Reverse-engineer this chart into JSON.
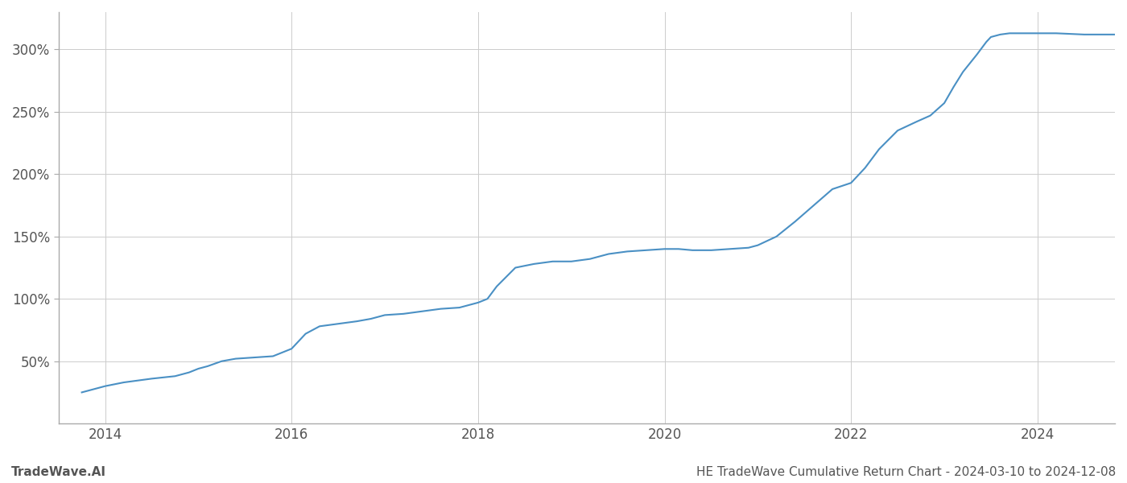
{
  "title": "HE TradeWave Cumulative Return Chart - 2024-03-10 to 2024-12-08",
  "watermark": "TradeWave.AI",
  "line_color": "#4a90c4",
  "line_width": 1.5,
  "background_color": "#ffffff",
  "grid_color": "#cccccc",
  "x_years": [
    2014,
    2016,
    2018,
    2020,
    2022,
    2024
  ],
  "y_ticks": [
    50,
    100,
    150,
    200,
    250,
    300
  ],
  "xlim": [
    2013.5,
    2024.83
  ],
  "ylim": [
    0,
    330
  ],
  "data_x": [
    2013.75,
    2013.85,
    2014.0,
    2014.2,
    2014.5,
    2014.75,
    2014.9,
    2015.0,
    2015.1,
    2015.25,
    2015.4,
    2015.6,
    2015.8,
    2016.0,
    2016.15,
    2016.3,
    2016.5,
    2016.7,
    2016.85,
    2017.0,
    2017.2,
    2017.4,
    2017.6,
    2017.8,
    2018.0,
    2018.1,
    2018.2,
    2018.4,
    2018.6,
    2018.8,
    2019.0,
    2019.2,
    2019.4,
    2019.6,
    2019.8,
    2020.0,
    2020.15,
    2020.3,
    2020.5,
    2020.7,
    2020.9,
    2021.0,
    2021.2,
    2021.4,
    2021.6,
    2021.8,
    2022.0,
    2022.15,
    2022.3,
    2022.5,
    2022.7,
    2022.85,
    2023.0,
    2023.1,
    2023.2,
    2023.35,
    2023.45,
    2023.5,
    2023.6,
    2023.7,
    2023.9,
    2024.0,
    2024.2,
    2024.5,
    2024.83
  ],
  "data_y": [
    25,
    27,
    30,
    33,
    36,
    38,
    41,
    44,
    46,
    50,
    52,
    53,
    54,
    60,
    72,
    78,
    80,
    82,
    84,
    87,
    88,
    90,
    92,
    93,
    97,
    100,
    110,
    125,
    128,
    130,
    130,
    132,
    136,
    138,
    139,
    140,
    140,
    139,
    139,
    140,
    141,
    143,
    150,
    162,
    175,
    188,
    193,
    205,
    220,
    235,
    242,
    247,
    257,
    270,
    282,
    296,
    306,
    310,
    312,
    313,
    313,
    313,
    313,
    312,
    312
  ]
}
